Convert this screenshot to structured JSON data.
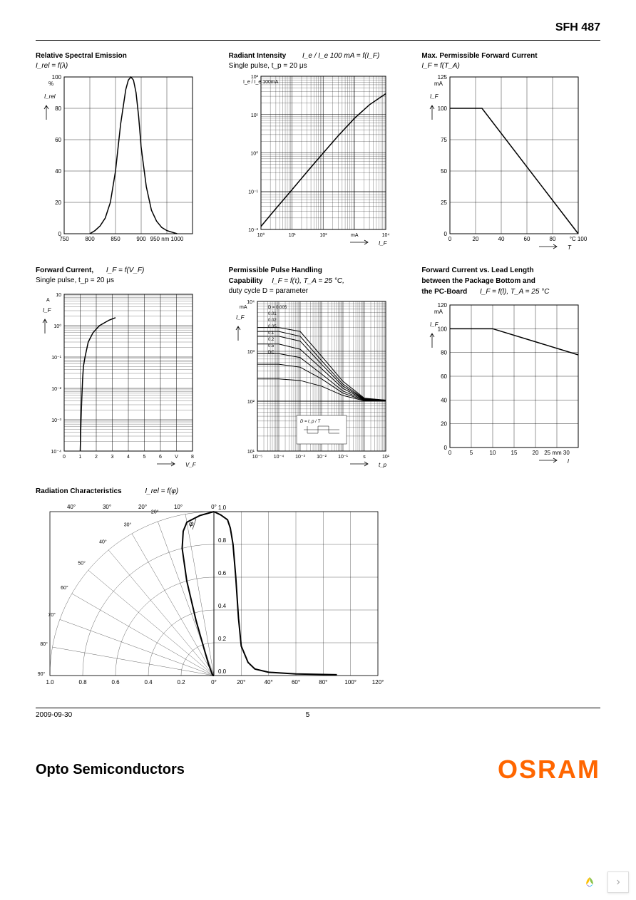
{
  "header": {
    "product": "SFH 487"
  },
  "footer": {
    "date": "2009-09-30",
    "page": "5",
    "division": "Opto Semiconductors",
    "brand": "OSRAM"
  },
  "colors": {
    "text": "#000000",
    "grid": "#000000",
    "curve": "#000000",
    "brand": "#ff6600",
    "bg": "#ffffff"
  },
  "charts": {
    "spectral": {
      "title": "Relative Spectral Emission",
      "formula": "I_rel = f(λ)",
      "ylabel": "%",
      "yaxis_var": "I_rel",
      "xlim": [
        750,
        1000
      ],
      "ylim": [
        0,
        100
      ],
      "xticks": [
        750,
        800,
        850,
        900,
        950,
        1000
      ],
      "xtick_labels": [
        "750",
        "800",
        "850",
        "900",
        "950 nm 1000"
      ],
      "yticks": [
        0,
        20,
        40,
        60,
        80,
        100
      ],
      "curve": [
        [
          800,
          0
        ],
        [
          810,
          2
        ],
        [
          820,
          5
        ],
        [
          830,
          10
        ],
        [
          840,
          20
        ],
        [
          850,
          40
        ],
        [
          860,
          70
        ],
        [
          870,
          92
        ],
        [
          875,
          98
        ],
        [
          880,
          100
        ],
        [
          885,
          98
        ],
        [
          890,
          90
        ],
        [
          895,
          75
        ],
        [
          900,
          55
        ],
        [
          910,
          30
        ],
        [
          920,
          15
        ],
        [
          930,
          8
        ],
        [
          940,
          4
        ],
        [
          950,
          2
        ],
        [
          960,
          1
        ],
        [
          970,
          0
        ]
      ],
      "line_width": 1.5
    },
    "radiant": {
      "title": "Radiant Intensity",
      "formula_img": "I_e / I_e 100 mA = f(I_F)",
      "subtitle": "Single pulse,    t_p = 20   μs",
      "xscale": "log",
      "yscale": "log",
      "xlim": [
        1,
        10000
      ],
      "ylim": [
        0.01,
        100
      ],
      "xticks": [
        1,
        10,
        100,
        1000,
        10000
      ],
      "xtick_labels": [
        "10⁰",
        "10¹",
        "10²",
        "mA",
        "10⁴"
      ],
      "xlabel": "I_F",
      "yticks": [
        0.01,
        0.1,
        1,
        10,
        100
      ],
      "ytick_labels": [
        "10⁻²",
        "10⁻¹",
        "10⁰",
        "10¹",
        "10²"
      ],
      "ylabel": "I_e / I_e 100mA",
      "curve": [
        [
          1,
          0.012
        ],
        [
          3,
          0.035
        ],
        [
          10,
          0.11
        ],
        [
          30,
          0.32
        ],
        [
          100,
          1
        ],
        [
          300,
          2.8
        ],
        [
          1000,
          8
        ],
        [
          3000,
          18
        ],
        [
          10000,
          35
        ]
      ],
      "line_width": 1.5
    },
    "maxforward": {
      "title": "Max. Permissible Forward Current",
      "formula": "I_F = f(T_A)",
      "ylabel": "mA",
      "yaxis_var": "I_F",
      "xlabel": "T",
      "xlim": [
        0,
        100
      ],
      "ylim": [
        0,
        125
      ],
      "xticks": [
        0,
        20,
        40,
        60,
        80,
        100
      ],
      "xtick_labels": [
        "0",
        "20",
        "40",
        "60",
        "80",
        "°C 100"
      ],
      "yticks": [
        0,
        25,
        50,
        75,
        100,
        125
      ],
      "curve": [
        [
          0,
          100
        ],
        [
          25,
          100
        ],
        [
          100,
          0
        ]
      ],
      "line_width": 1.5
    },
    "fwdcurrent": {
      "title": "Forward Current,",
      "formula": "I_F = f(V_F)",
      "subtitle": "Single pulse,    t_p = 20   μs",
      "yscale": "log",
      "xlim": [
        0,
        8
      ],
      "ylim": [
        0.0001,
        10
      ],
      "xticks": [
        0,
        1,
        2,
        3,
        4,
        5,
        6,
        7,
        8
      ],
      "xtick_labels": [
        "0",
        "1",
        "2",
        "3",
        "4",
        "5",
        "6",
        "V",
        "8"
      ],
      "xlabel": "V_F",
      "yticks": [
        0.0001,
        0.001,
        0.01,
        0.1,
        1,
        10
      ],
      "ytick_labels": [
        "10⁻⁴",
        "10⁻³",
        "10⁻²",
        "10⁻¹",
        "10⁰",
        "10"
      ],
      "ylabel": "A",
      "yaxis_var": "I_F",
      "curve": [
        [
          1.0,
          0.0001
        ],
        [
          1.05,
          0.001
        ],
        [
          1.1,
          0.005
        ],
        [
          1.15,
          0.02
        ],
        [
          1.2,
          0.05
        ],
        [
          1.3,
          0.1
        ],
        [
          1.5,
          0.3
        ],
        [
          1.8,
          0.6
        ],
        [
          2.2,
          1
        ],
        [
          2.8,
          1.5
        ],
        [
          3.2,
          1.8
        ]
      ],
      "line_width": 1.5
    },
    "pulse": {
      "title": "Permissible Pulse Handling",
      "title2": "Capability",
      "formula": "I_F = f(τ),  T_A = 25   °C,",
      "subtitle": "duty cycle    D = parameter",
      "xscale": "log",
      "yscale": "log",
      "xlim": [
        1e-05,
        10
      ],
      "ylim": [
        10,
        10000
      ],
      "xticks": [
        1e-05,
        0.0001,
        0.001,
        0.01,
        0.1,
        1,
        10
      ],
      "xtick_labels": [
        "10⁻⁵",
        "10⁻⁴",
        "10⁻³",
        "10⁻²",
        "10⁻¹",
        "s",
        "10¹"
      ],
      "xlabel": "t_p",
      "yticks": [
        10,
        100,
        1000,
        10000
      ],
      "ytick_labels": [
        "10¹",
        "10²",
        "10³",
        "10⁴"
      ],
      "ylabel": "mA",
      "yaxis_var": "I_F",
      "d_labels": [
        "D = 0.005",
        "0.01",
        "0.02",
        "0.05",
        "0.1",
        "0.2",
        "0.5",
        "DC"
      ],
      "curves": [
        [
          [
            1e-05,
            3000
          ],
          [
            0.0001,
            3000
          ],
          [
            0.001,
            2500
          ],
          [
            0.01,
            800
          ],
          [
            0.1,
            250
          ],
          [
            1,
            115
          ],
          [
            10,
            105
          ]
        ],
        [
          [
            1e-05,
            2500
          ],
          [
            0.0001,
            2500
          ],
          [
            0.001,
            2000
          ],
          [
            0.01,
            650
          ],
          [
            0.1,
            220
          ],
          [
            1,
            112
          ],
          [
            10,
            105
          ]
        ],
        [
          [
            1e-05,
            2000
          ],
          [
            0.0001,
            2000
          ],
          [
            0.001,
            1600
          ],
          [
            0.01,
            550
          ],
          [
            0.1,
            200
          ],
          [
            1,
            110
          ],
          [
            10,
            103
          ]
        ],
        [
          [
            1e-05,
            1400
          ],
          [
            0.0001,
            1400
          ],
          [
            0.001,
            1100
          ],
          [
            0.01,
            450
          ],
          [
            0.1,
            180
          ],
          [
            1,
            108
          ],
          [
            10,
            102
          ]
        ],
        [
          [
            1e-05,
            900
          ],
          [
            0.0001,
            900
          ],
          [
            0.001,
            750
          ],
          [
            0.01,
            350
          ],
          [
            0.1,
            160
          ],
          [
            1,
            106
          ],
          [
            10,
            101
          ]
        ],
        [
          [
            1e-05,
            550
          ],
          [
            0.0001,
            550
          ],
          [
            0.001,
            480
          ],
          [
            0.01,
            280
          ],
          [
            0.1,
            145
          ],
          [
            1,
            104
          ],
          [
            10,
            101
          ]
        ],
        [
          [
            1e-05,
            280
          ],
          [
            0.0001,
            280
          ],
          [
            0.001,
            260
          ],
          [
            0.01,
            200
          ],
          [
            0.1,
            130
          ],
          [
            1,
            102
          ],
          [
            10,
            100
          ]
        ],
        [
          [
            1e-05,
            100
          ],
          [
            10,
            100
          ]
        ]
      ],
      "inset_label": "D = t_p / T",
      "line_width": 1
    },
    "leadlength": {
      "title": "Forward Current vs. Lead Length",
      "title2": "between the Package Bottom and",
      "title3": "the PC-Board",
      "formula": "I_F = f(l),  T_A = 25   °C",
      "ylabel": "mA",
      "yaxis_var": "I_F",
      "xlabel": "l",
      "xlim": [
        0,
        30
      ],
      "ylim": [
        0,
        120
      ],
      "xticks": [
        0,
        5,
        10,
        15,
        20,
        25,
        30
      ],
      "xtick_labels": [
        "0",
        "5",
        "10",
        "15",
        "20",
        "25 mm 30"
      ],
      "yticks": [
        0,
        20,
        40,
        60,
        80,
        100,
        120
      ],
      "curve": [
        [
          0,
          100
        ],
        [
          10,
          100
        ],
        [
          30,
          78
        ]
      ],
      "line_width": 1.5
    },
    "radiation": {
      "title": "Radiation Characteristics",
      "formula": "I_rel = f(φ)",
      "polar_angles": [
        0,
        10,
        20,
        30,
        40,
        50,
        60,
        70,
        80,
        90,
        100
      ],
      "polar_radii": [
        0,
        0.2,
        0.4,
        0.6,
        0.8,
        1.0
      ],
      "cart_xlim": [
        0,
        120
      ],
      "cart_ylim": [
        0,
        1.0
      ],
      "cart_xticks": [
        0,
        20,
        40,
        60,
        80,
        100,
        120
      ],
      "cart_yticks": [
        0,
        0.2,
        0.4,
        0.6,
        0.8,
        1.0
      ],
      "curve_polar": [
        [
          0,
          1.0
        ],
        [
          5,
          0.98
        ],
        [
          10,
          0.95
        ],
        [
          12,
          0.9
        ],
        [
          14,
          0.8
        ],
        [
          16,
          0.6
        ],
        [
          18,
          0.35
        ],
        [
          20,
          0.18
        ],
        [
          25,
          0.08
        ],
        [
          30,
          0.04
        ],
        [
          40,
          0.02
        ],
        [
          60,
          0.01
        ],
        [
          90,
          0.005
        ]
      ],
      "line_width": 2
    }
  }
}
